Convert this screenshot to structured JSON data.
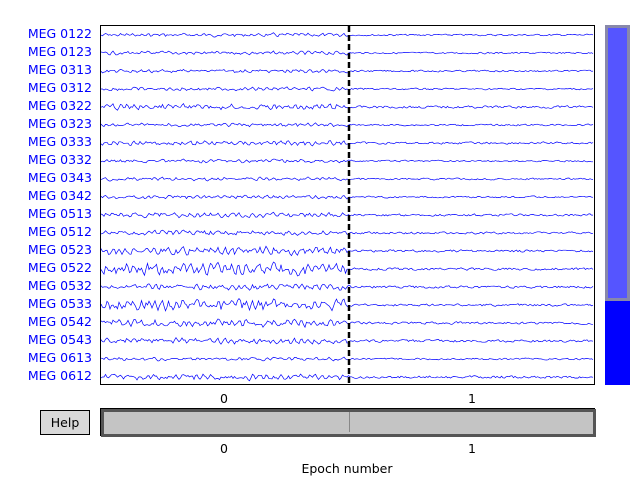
{
  "channels": [
    "MEG 0122",
    "MEG 0123",
    "MEG 0313",
    "MEG 0312",
    "MEG 0322",
    "MEG 0323",
    "MEG 0333",
    "MEG 0332",
    "MEG 0343",
    "MEG 0342",
    "MEG 0513",
    "MEG 0512",
    "MEG 0523",
    "MEG 0522",
    "MEG 0532",
    "MEG 0533",
    "MEG 0542",
    "MEG 0543",
    "MEG 0613",
    "MEG 0612"
  ],
  "amplitude": [
    0.3,
    0.3,
    0.3,
    0.3,
    0.5,
    0.3,
    0.4,
    0.3,
    0.3,
    0.3,
    0.4,
    0.4,
    0.7,
    1.0,
    0.5,
    0.9,
    0.6,
    0.5,
    0.3,
    0.5
  ],
  "x_ticks": [
    "0",
    "1"
  ],
  "help_label": "Help",
  "xlabel": "Epoch number",
  "colors": {
    "trace": "#0000ff",
    "divider": "#000000"
  }
}
